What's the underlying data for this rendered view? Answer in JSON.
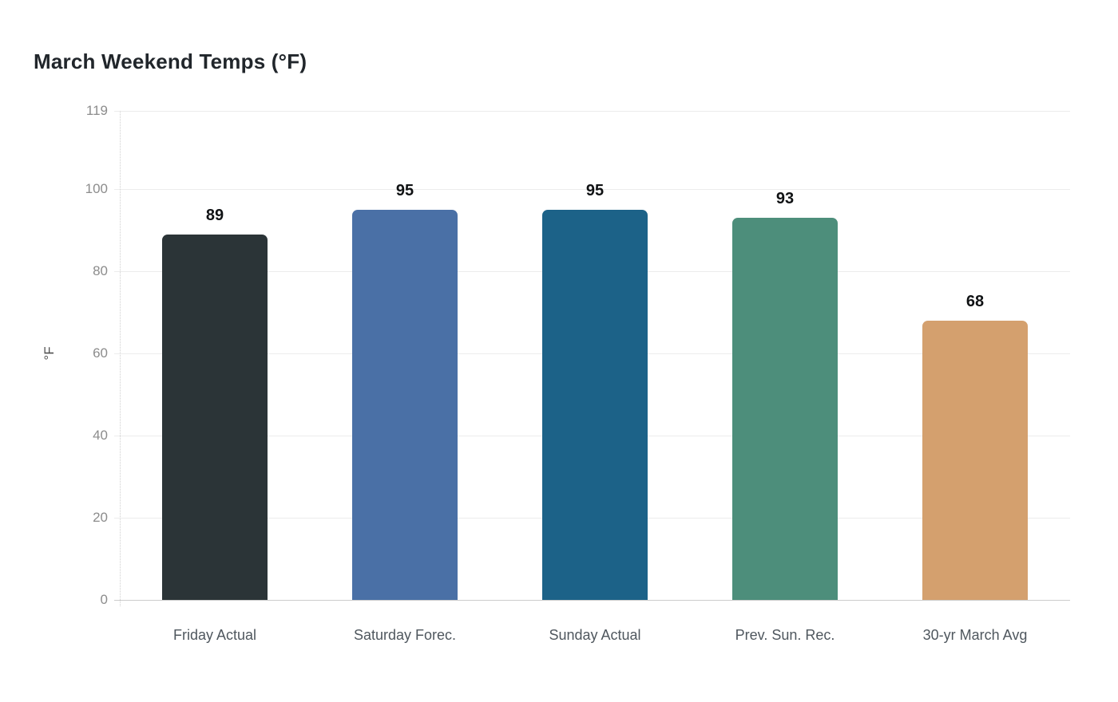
{
  "chart_data": {
    "type": "bar",
    "title": "March Weekend Temps (°F)",
    "categories": [
      "Friday Actual",
      "Saturday Forec.",
      "Sunday Actual",
      "Prev. Sun. Rec.",
      "30-yr March Avg"
    ],
    "values": [
      89,
      95,
      95,
      93,
      68
    ],
    "value_labels": [
      "89",
      "95",
      "95",
      "93",
      "68"
    ],
    "bar_colors": [
      "#2b3437",
      "#4a70a6",
      "#1c6288",
      "#4d8e7b",
      "#d4a06e"
    ],
    "xlabel": "",
    "ylabel": "°F",
    "ylim": [
      0,
      119
    ],
    "yticks": [
      0,
      20,
      40,
      60,
      80,
      100,
      119
    ],
    "grid": true,
    "legend": false,
    "colors": {
      "background": "#ffffff",
      "gridline": "#ececec",
      "axis_line": "#cccccc",
      "tick_label": "#8c8c8c",
      "category_label": "#4f575e",
      "value_label": "#101214",
      "title": "#21262b"
    }
  }
}
